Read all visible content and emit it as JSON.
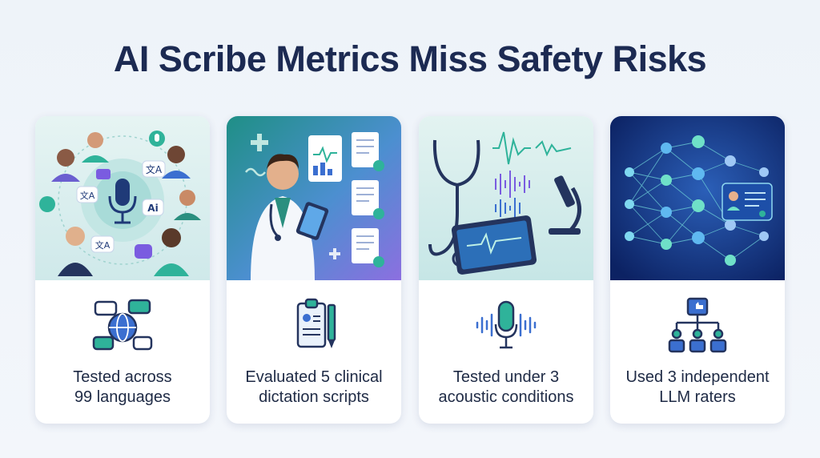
{
  "title": "AI Scribe Metrics Miss Safety Risks",
  "cards": [
    {
      "illustration": "multilingual-speakers-microphone",
      "icon": "speech-globe-icon",
      "illustration_badges": [
        "文A",
        "文A",
        "Ai",
        "文A"
      ],
      "caption_line1": "Tested across",
      "caption_line2": "99 languages"
    },
    {
      "illustration": "doctor-tablet-documents",
      "icon": "clipboard-pen-icon",
      "caption_line1": "Evaluated 5 clinical",
      "caption_line2": "dictation scripts"
    },
    {
      "illustration": "stethoscope-waveforms-microscope",
      "icon": "microphone-waveform-icon",
      "caption_line1": "Tested under 3",
      "caption_line2": "acoustic conditions"
    },
    {
      "illustration": "neural-network-profile",
      "icon": "raters-thumbs-up-icon",
      "caption_line1": "Used 3 independent",
      "caption_line2": "LLM raters"
    }
  ],
  "colors": {
    "title": "#1c2a52",
    "teal": "#2fb39a",
    "navy": "#1f3a78",
    "blue": "#3b6fd0",
    "purple": "#7a5ce0",
    "card_dark_bg": "#0e2a6e"
  }
}
